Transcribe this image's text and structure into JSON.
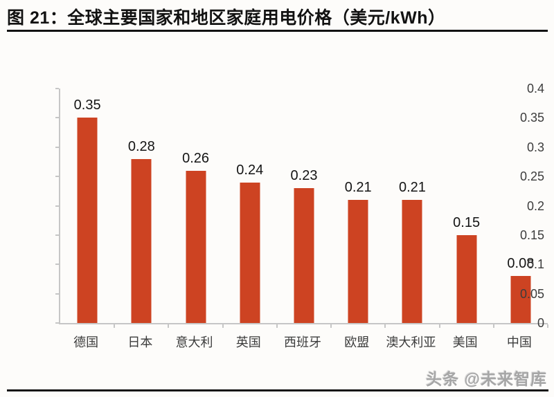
{
  "figure": {
    "title": "图 21：全球主要国家和地区家庭用电价格（美元/kWh）"
  },
  "chart_data": {
    "type": "bar",
    "title": "图 21：全球主要国家和地区家庭用电价格（美元/kWh）",
    "categories": [
      "德国",
      "日本",
      "意大利",
      "英国",
      "西班牙",
      "欧盟",
      "澳大利亚",
      "美国",
      "中国"
    ],
    "values": [
      0.35,
      0.28,
      0.26,
      0.24,
      0.23,
      0.21,
      0.21,
      0.15,
      0.08
    ],
    "data_labels": [
      "0.35",
      "0.28",
      "0.26",
      "0.24",
      "0.23",
      "0.21",
      "0.21",
      "0.15",
      "0.08"
    ],
    "y_ticks": [
      "0.4",
      "0.35",
      "0.3",
      "0.25",
      "0.2",
      "0.15",
      "0.1",
      "0.05",
      "0"
    ],
    "ylim": [
      0,
      0.4
    ],
    "xlabel": "",
    "ylabel": "",
    "grid": false,
    "legend_position": "none",
    "bar_color": "#cd4322",
    "axis_color": "#c6c6c6",
    "label_color": "#141414"
  },
  "watermark": {
    "text": "头条 @未来智库"
  }
}
